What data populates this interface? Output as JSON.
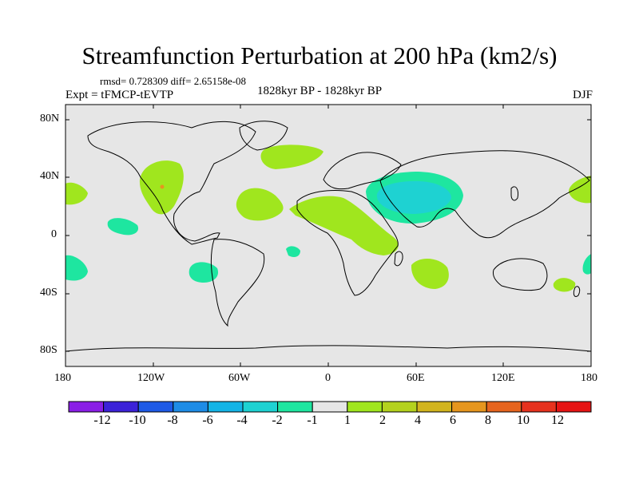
{
  "header": {
    "title": "Streamfunction Perturbation at 200 hPa (km2/s)",
    "stats": "rmsd= 0.728309  diff= 2.65158e-08",
    "experiment": "Expt = tFMCP-tEVTP",
    "period": "1828kyr BP - 1828kyr BP",
    "season": "DJF"
  },
  "axes": {
    "lat_ticks": [
      "80N",
      "40N",
      "0",
      "40S",
      "80S"
    ],
    "lon_ticks": [
      "180",
      "120W",
      "60W",
      "0",
      "60E",
      "120E",
      "180"
    ]
  },
  "colorbar": {
    "labels": [
      "-12",
      "-10",
      "-8",
      "-6",
      "-4",
      "-2",
      "-1",
      "1",
      "2",
      "4",
      "6",
      "8",
      "10",
      "12"
    ],
    "colors": [
      "#8a1ee6",
      "#3c22d8",
      "#1e5ae6",
      "#1e8ce6",
      "#14b4e6",
      "#1ed2d2",
      "#1ee6a0",
      "#e6e6e6",
      "#a0e61e",
      "#b4d21e",
      "#d2b41e",
      "#e6961e",
      "#e6641e",
      "#e6321e",
      "#e61414"
    ]
  },
  "map": {
    "background_color": "#e6e6e6",
    "positive_color": "#a0e61e",
    "negative_color": "#1ee6a0",
    "strong_negative_color": "#1ed2d2"
  }
}
